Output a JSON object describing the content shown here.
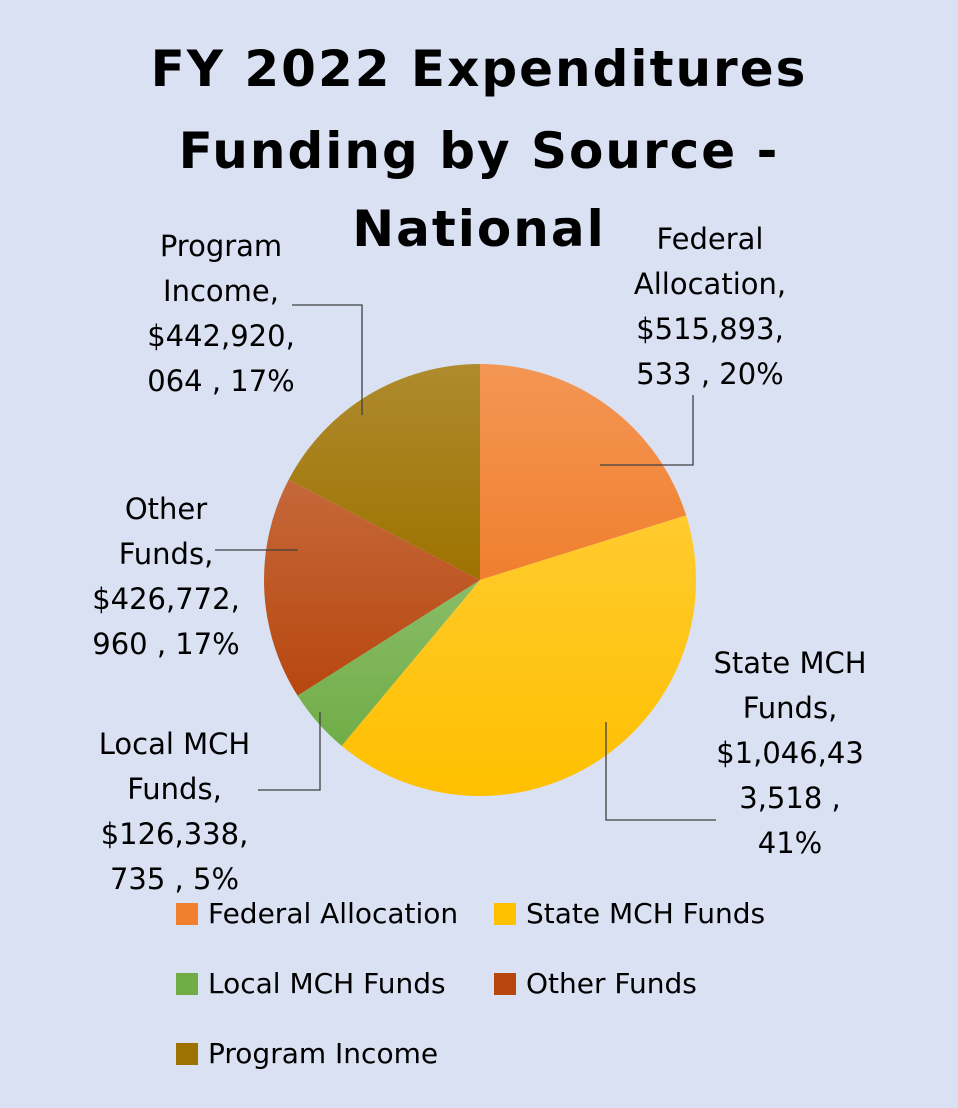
{
  "chart_data": {
    "type": "pie",
    "title": [
      "FY 2022 Expenditures",
      "Funding by Source -",
      "National"
    ],
    "slices": [
      {
        "name": "Federal Allocation",
        "value": 515893533,
        "percent": 20,
        "color": "#f07f2e",
        "label_lines": [
          "Federal",
          "Allocation,",
          "$515,893,",
          "533 , 20%"
        ]
      },
      {
        "name": "State MCH Funds",
        "value": 1046433518,
        "percent": 41,
        "color": "#ffc000",
        "label_lines": [
          "State MCH",
          "Funds,",
          "$1,046,43",
          "3,518 ,",
          "41%"
        ]
      },
      {
        "name": "Local MCH Funds",
        "value": 126338735,
        "percent": 5,
        "color": "#70ad47",
        "label_lines": [
          "Local MCH",
          "Funds,",
          "$126,338,",
          "735 , 5%"
        ]
      },
      {
        "name": "Other Funds",
        "value": 426772960,
        "percent": 17,
        "color": "#b8470f",
        "label_lines": [
          "Other",
          "Funds,",
          "$426,772,",
          "960 , 17%"
        ]
      },
      {
        "name": "Program Income",
        "value": 442920064,
        "percent": 17,
        "color": "#9e7200",
        "label_lines": [
          "Program",
          "Income,",
          "$442,920,",
          "064 , 17%"
        ]
      }
    ],
    "legend_position": "bottom"
  }
}
